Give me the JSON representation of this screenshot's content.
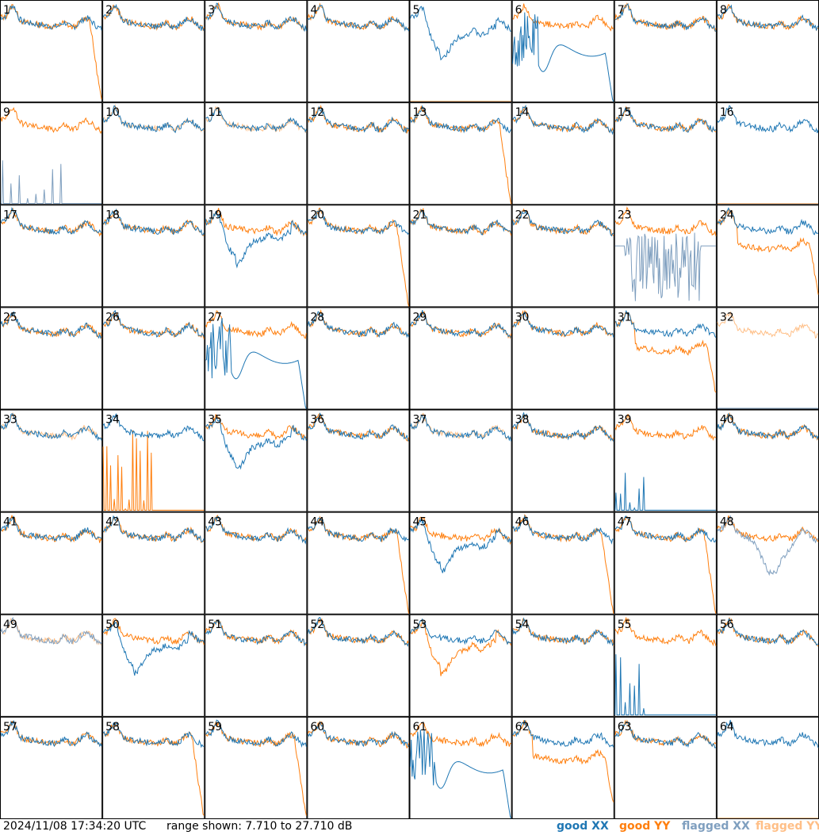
{
  "footer": {
    "timestamp": "2024/11/08 17:34:20 UTC",
    "range": "range shown: 7.710 to 27.710 dB"
  },
  "legend": {
    "good_xx": "good XX",
    "good_yy": "good YY",
    "flagged_xx": "flagged XX",
    "flagged_yy": "flagged YY"
  },
  "colors": {
    "good_xx": "#1f77b4",
    "good_yy": "#ff7f0e",
    "flagged_xx": "#7f9fbf",
    "flagged_yy": "#ffbf87"
  },
  "chart_data": {
    "type": "line",
    "ylim": [
      7.71,
      27.71
    ],
    "grid": "8x8",
    "panels": [
      {
        "label": "1",
        "x": "normal",
        "y": "dropoff"
      },
      {
        "label": "2",
        "x": "normal",
        "y": "normal"
      },
      {
        "label": "3",
        "x": "normal",
        "y": "normal"
      },
      {
        "label": "4",
        "x": "normal",
        "y": "normal"
      },
      {
        "label": "5",
        "x": "dip",
        "y": "flagline"
      },
      {
        "label": "6",
        "x": "lowdip",
        "y": "normal"
      },
      {
        "label": "7",
        "x": "normal",
        "y": "normal"
      },
      {
        "label": "8",
        "x": "normal",
        "y": "normal"
      },
      {
        "label": "9",
        "x": "flagspikes",
        "y": "normal"
      },
      {
        "label": "10",
        "x": "normal",
        "y": "flagged"
      },
      {
        "label": "11",
        "x": "normal",
        "y": "flagged"
      },
      {
        "label": "12",
        "x": "normal",
        "y": "normal"
      },
      {
        "label": "13",
        "x": "normal",
        "y": "dropoff"
      },
      {
        "label": "14",
        "x": "normal",
        "y": "normal"
      },
      {
        "label": "15",
        "x": "normal",
        "y": "normal"
      },
      {
        "label": "16",
        "x": "normal",
        "y": "flagline"
      },
      {
        "label": "17",
        "x": "normal",
        "y": "normal"
      },
      {
        "label": "18",
        "x": "normal",
        "y": "normal"
      },
      {
        "label": "19",
        "x": "dip",
        "y": "normal"
      },
      {
        "label": "20",
        "x": "normal",
        "y": "dropoff"
      },
      {
        "label": "21",
        "x": "normal",
        "y": "normal"
      },
      {
        "label": "22",
        "x": "normal",
        "y": "normal"
      },
      {
        "label": "23",
        "x": "flagnoise",
        "y": "normal"
      },
      {
        "label": "24",
        "x": "normal",
        "y": "low"
      },
      {
        "label": "25",
        "x": "normal",
        "y": "normal"
      },
      {
        "label": "26",
        "x": "normal",
        "y": "normal"
      },
      {
        "label": "27",
        "x": "lowdip",
        "y": "normal"
      },
      {
        "label": "28",
        "x": "normal",
        "y": "normal"
      },
      {
        "label": "29",
        "x": "normal",
        "y": "normal"
      },
      {
        "label": "30",
        "x": "normal",
        "y": "normal"
      },
      {
        "label": "31",
        "x": "normal",
        "y": "low"
      },
      {
        "label": "32",
        "x": "flagline",
        "y": "flagged"
      },
      {
        "label": "33",
        "x": "normal",
        "y": "flagged"
      },
      {
        "label": "34",
        "x": "normal",
        "y": "spikes"
      },
      {
        "label": "35",
        "x": "dip",
        "y": "normal"
      },
      {
        "label": "36",
        "x": "normal",
        "y": "normal"
      },
      {
        "label": "37",
        "x": "normal",
        "y": "flagged"
      },
      {
        "label": "38",
        "x": "normal",
        "y": "normal"
      },
      {
        "label": "39",
        "x": "spikesline",
        "y": "normal"
      },
      {
        "label": "40",
        "x": "normal",
        "y": "normal"
      },
      {
        "label": "41",
        "x": "normal",
        "y": "normal"
      },
      {
        "label": "42",
        "x": "normal",
        "y": "normal"
      },
      {
        "label": "43",
        "x": "normal",
        "y": "normal"
      },
      {
        "label": "44",
        "x": "normal",
        "y": "dropoff"
      },
      {
        "label": "45",
        "x": "dip",
        "y": "normal"
      },
      {
        "label": "46",
        "x": "normal",
        "y": "dropoff"
      },
      {
        "label": "47",
        "x": "normal",
        "y": "dropoff"
      },
      {
        "label": "48",
        "x": "flagdip",
        "y": "normal"
      },
      {
        "label": "49",
        "x": "flaggedx",
        "y": "flagged"
      },
      {
        "label": "50",
        "x": "dip",
        "y": "normal"
      },
      {
        "label": "51",
        "x": "normal",
        "y": "normal"
      },
      {
        "label": "52",
        "x": "normal",
        "y": "normal"
      },
      {
        "label": "53",
        "x": "normal",
        "y": "dip"
      },
      {
        "label": "54",
        "x": "normal",
        "y": "normal"
      },
      {
        "label": "55",
        "x": "spikesline",
        "y": "normal"
      },
      {
        "label": "56",
        "x": "normal",
        "y": "normal"
      },
      {
        "label": "57",
        "x": "normal",
        "y": "normal"
      },
      {
        "label": "58",
        "x": "normal",
        "y": "dropoff"
      },
      {
        "label": "59",
        "x": "normal",
        "y": "dropoff"
      },
      {
        "label": "60",
        "x": "normal",
        "y": "normal"
      },
      {
        "label": "61",
        "x": "lowdip",
        "y": "normal"
      },
      {
        "label": "62",
        "x": "normal",
        "y": "low"
      },
      {
        "label": "63",
        "x": "normal",
        "y": "normal"
      },
      {
        "label": "64",
        "x": "normal",
        "y": "flagline"
      }
    ]
  }
}
